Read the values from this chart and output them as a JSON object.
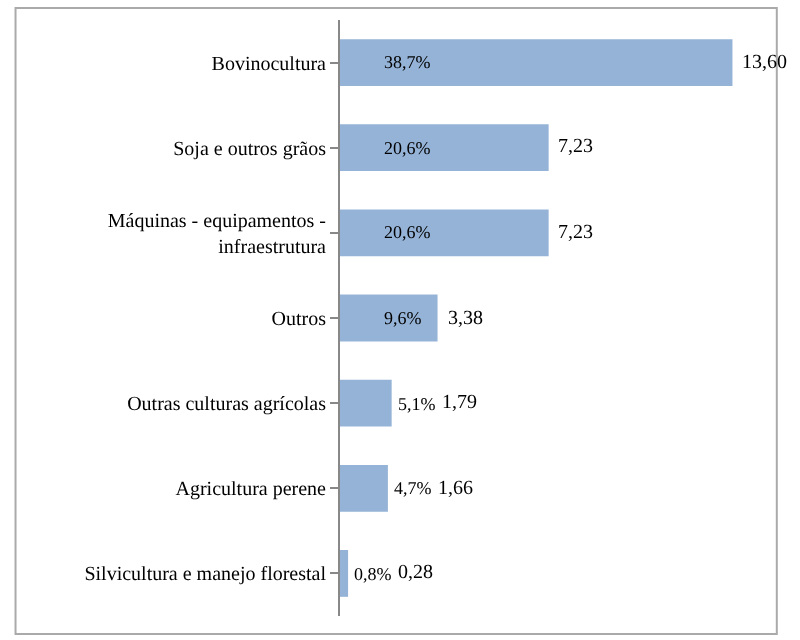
{
  "chart_data": {
    "type": "bar",
    "orientation": "horizontal",
    "categories": [
      "Bovinocultura",
      "Soja e outros grãos",
      "Máquinas - equipamentos - infraestrutura",
      "Outros",
      "Outras culturas agrícolas",
      "Agricultura perene",
      "Silvicultura e manejo florestal"
    ],
    "values": [
      13.6,
      7.23,
      7.23,
      3.38,
      1.79,
      1.66,
      0.28
    ],
    "value_labels": [
      "13,60",
      "7,23",
      "7,23",
      "3,38",
      "1,79",
      "1,66",
      "0,28"
    ],
    "color": "#95b3d7",
    "tick_labels": "y",
    "legend": false,
    "annotations": [
      "38,7%",
      "20,6%",
      "20,6%",
      "9,6%",
      "5,1%",
      "4,7%",
      "0,8%"
    ]
  }
}
